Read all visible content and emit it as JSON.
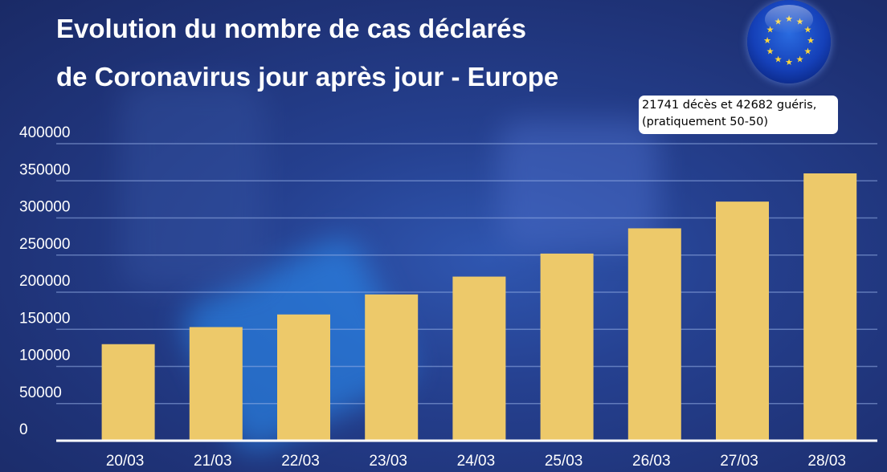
{
  "title_lines": [
    "Evolution du nombre de cas déclarés",
    "de Coronavirus jour après jour - Europe"
  ],
  "annotation_lines": [
    "21741 décès et 42682 guéris,",
    "(pratiquement 50-50)"
  ],
  "logo": "eu-flag-globe",
  "colors": {
    "bar": "#EDC96A",
    "background": "#22398A",
    "text": "#FFFFFF"
  },
  "chart_data": {
    "type": "bar",
    "title": "Evolution du nombre de cas déclarés de Coronavirus jour après jour - Europe",
    "categories": [
      "20/03",
      "21/03",
      "22/03",
      "23/03",
      "24/03",
      "25/03",
      "26/03",
      "27/03",
      "28/03"
    ],
    "values": [
      130000,
      153000,
      170000,
      197000,
      221000,
      252000,
      286000,
      322000,
      360000
    ],
    "ylim": [
      0,
      400000
    ],
    "yticks": [
      "0",
      "50000",
      "100000",
      "150000",
      "200000",
      "250000",
      "300000",
      "350000",
      "400000"
    ],
    "grid": true,
    "xlabel": "",
    "ylabel": ""
  }
}
